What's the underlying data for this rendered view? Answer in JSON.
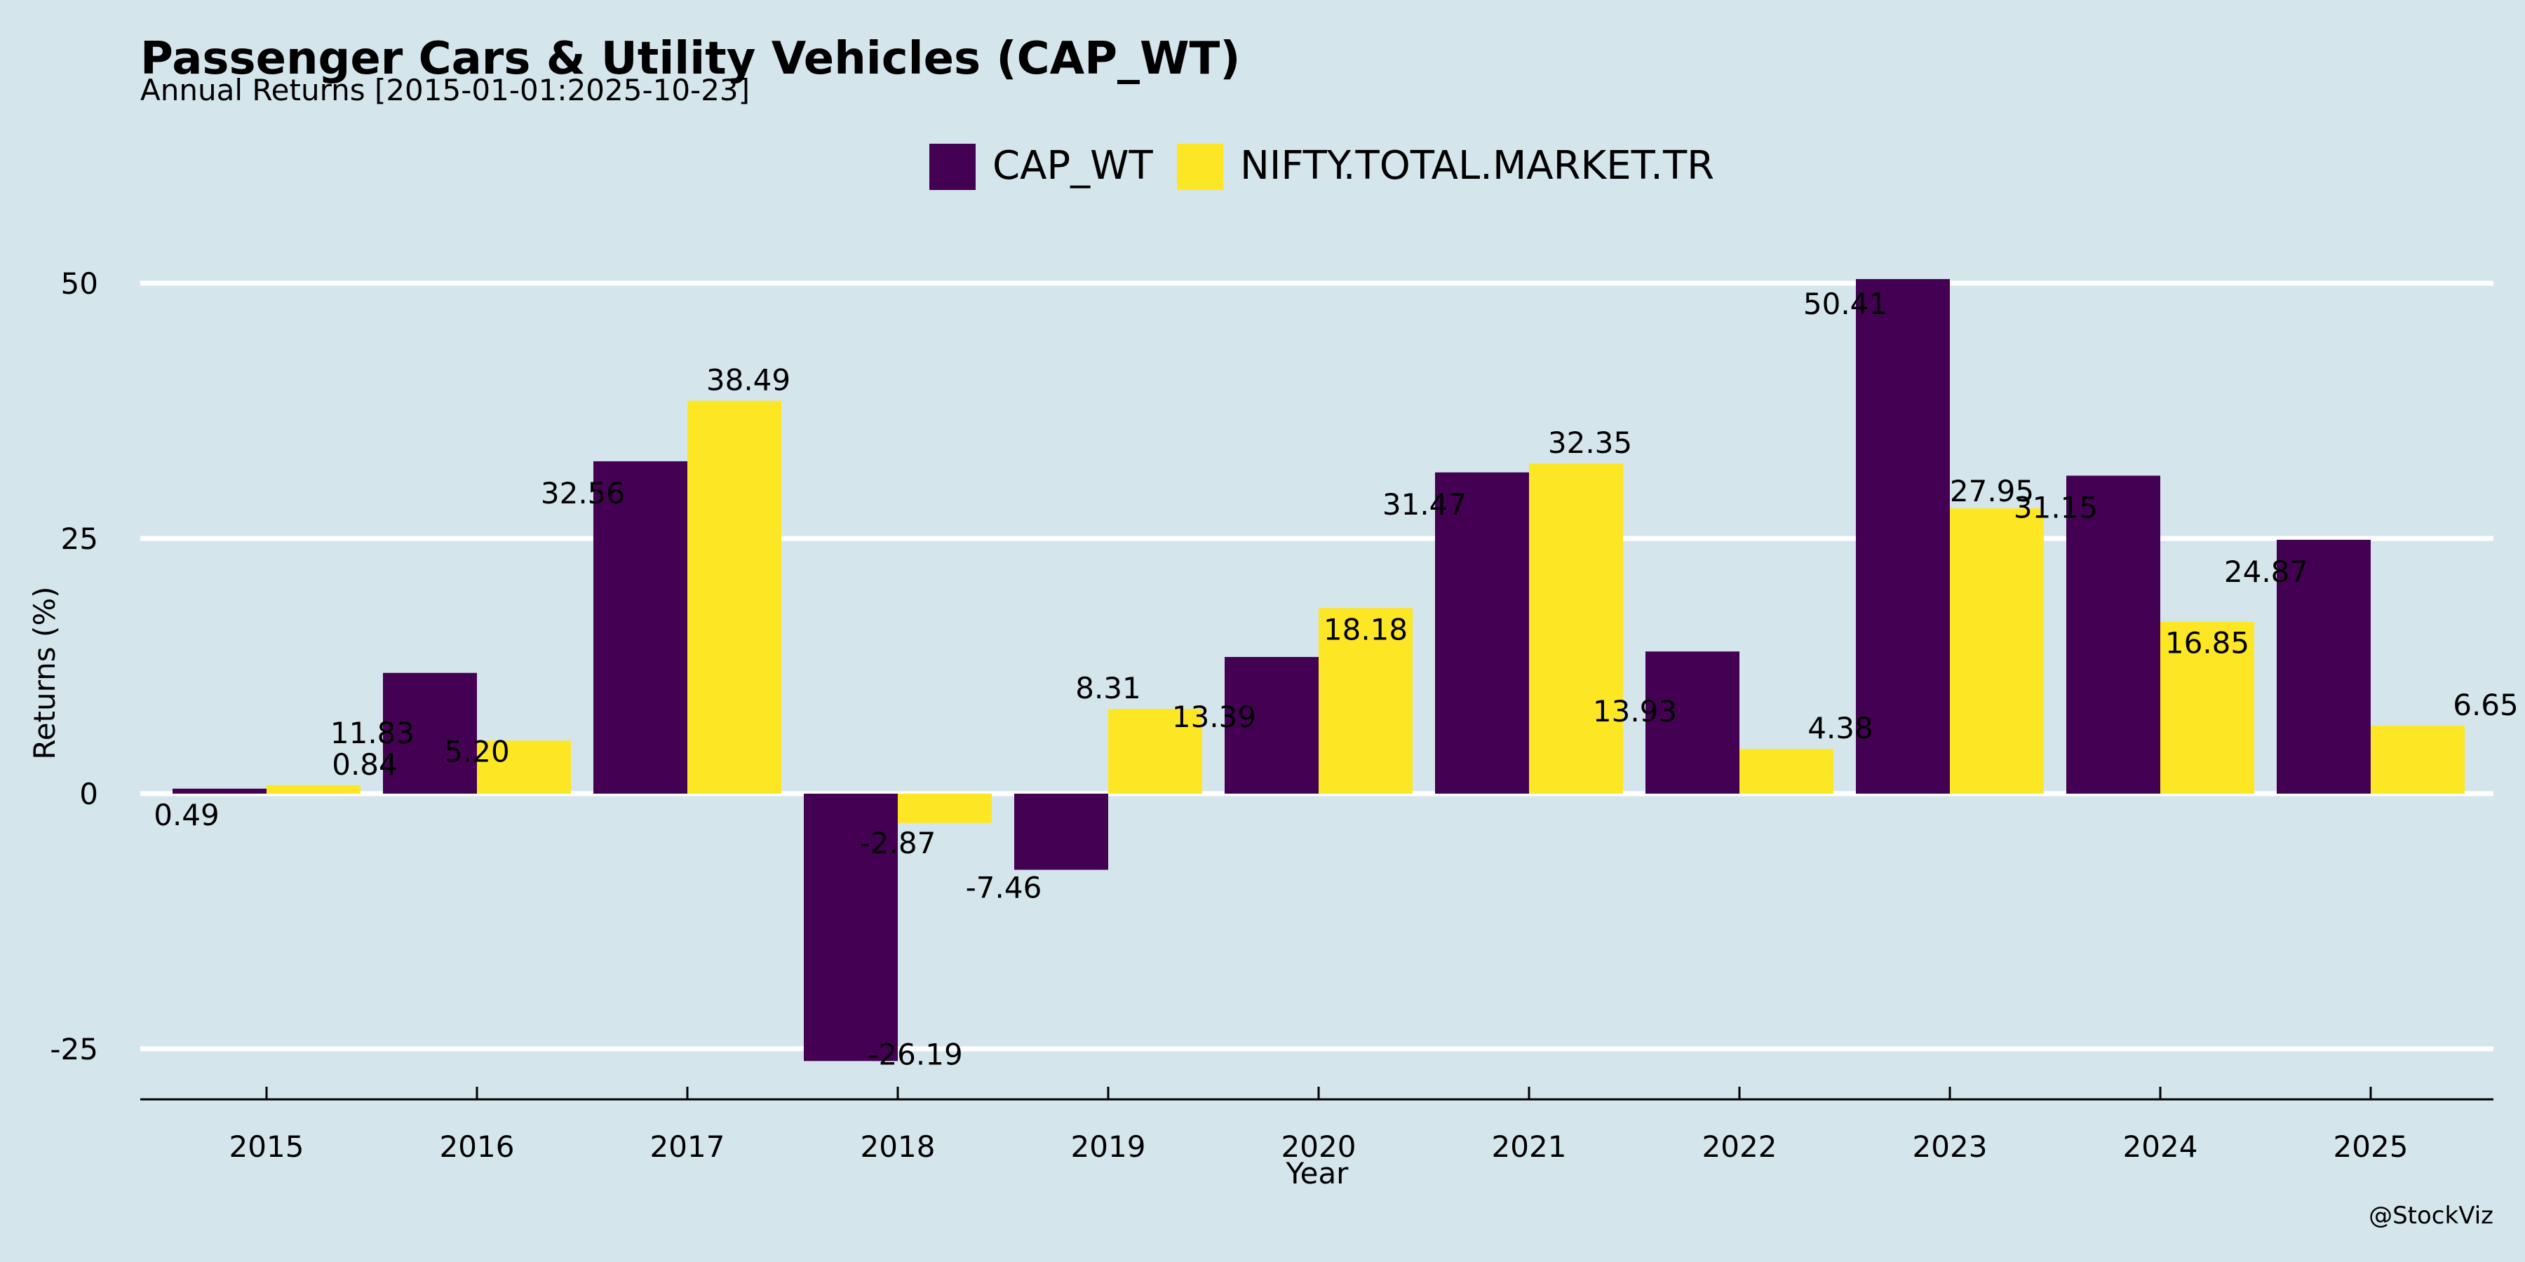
{
  "chart_data": {
    "type": "bar",
    "title": "Passenger Cars & Utility Vehicles (CAP_WT)",
    "subtitle": "Annual Returns [2015-01-01:2025-10-23]",
    "xlabel": "Year",
    "ylabel": "Returns (%)",
    "ylim": [
      -30,
      60
    ],
    "yticks": [
      -25,
      0,
      25,
      50
    ],
    "grid": true,
    "legend": "top-center",
    "categories": [
      "2015",
      "2016",
      "2017",
      "2018",
      "2019",
      "2020",
      "2021",
      "2022",
      "2023",
      "2024",
      "2025"
    ],
    "series": [
      {
        "name": "CAP_WT",
        "color": "#440154",
        "values": [
          0.49,
          11.83,
          32.56,
          -26.19,
          -7.46,
          13.39,
          31.47,
          13.93,
          50.41,
          31.15,
          24.87
        ],
        "labels": [
          "0.49",
          "11.83",
          "32.56",
          "-26.19",
          "-7.46",
          "13.39",
          "31.47",
          "13.93",
          "50.41",
          "31.15",
          "24.87"
        ]
      },
      {
        "name": "NIFTY.TOTAL.MARKET.TR",
        "color": "#fde725",
        "values": [
          0.84,
          5.2,
          38.49,
          -2.87,
          8.31,
          18.18,
          32.35,
          4.38,
          27.95,
          16.85,
          6.65
        ],
        "labels": [
          "0.84",
          "5.20",
          "38.49",
          "-2.87",
          "8.31",
          "18.18",
          "32.35",
          "4.38",
          "27.95",
          "16.85",
          "6.65"
        ]
      }
    ],
    "credit": "@StockViz"
  }
}
